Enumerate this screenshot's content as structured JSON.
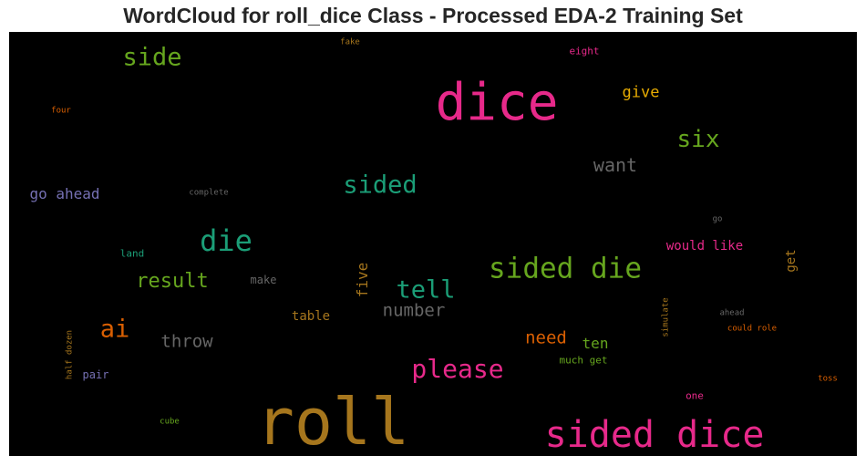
{
  "chart_data": {
    "type": "wordcloud",
    "title": "WordCloud for roll_dice Class - Processed EDA-2 Training Set",
    "background": "#000000",
    "words": [
      {
        "text": "roll",
        "color": "#a6761d"
      },
      {
        "text": "dice",
        "color": "#e7298a"
      },
      {
        "text": "sided dice",
        "color": "#e7298a"
      },
      {
        "text": "sided die",
        "color": "#66a61e"
      },
      {
        "text": "die",
        "color": "#1b9e77"
      },
      {
        "text": "please",
        "color": "#e7298a"
      },
      {
        "text": "side",
        "color": "#66a61e"
      },
      {
        "text": "sided",
        "color": "#1b9e77"
      },
      {
        "text": "tell",
        "color": "#1b9e77"
      },
      {
        "text": "six",
        "color": "#66a61e"
      },
      {
        "text": "ai",
        "color": "#d95f02"
      },
      {
        "text": "result",
        "color": "#66a61e"
      },
      {
        "text": "want",
        "color": "#666666"
      },
      {
        "text": "number",
        "color": "#666666"
      },
      {
        "text": "throw",
        "color": "#666666"
      },
      {
        "text": "need",
        "color": "#d95f02"
      },
      {
        "text": "give",
        "color": "#e6ab02"
      },
      {
        "text": "go ahead",
        "color": "#7570b3"
      },
      {
        "text": "ten",
        "color": "#66a61e"
      },
      {
        "text": "five",
        "color": "#a6761d"
      },
      {
        "text": "would like",
        "color": "#e7298a"
      },
      {
        "text": "table",
        "color": "#a6761d"
      },
      {
        "text": "get",
        "color": "#a6761d"
      },
      {
        "text": "make",
        "color": "#666666"
      },
      {
        "text": "pair",
        "color": "#7570b3"
      },
      {
        "text": "land",
        "color": "#1b9e77"
      },
      {
        "text": "eight",
        "color": "#e7298a"
      },
      {
        "text": "much get",
        "color": "#66a61e"
      },
      {
        "text": "one",
        "color": "#e7298a"
      },
      {
        "text": "fake",
        "color": "#a6761d"
      },
      {
        "text": "four",
        "color": "#d95f02"
      },
      {
        "text": "complete",
        "color": "#666666"
      },
      {
        "text": "go",
        "color": "#666666"
      },
      {
        "text": "ahead",
        "color": "#666666"
      },
      {
        "text": "could role",
        "color": "#d95f02"
      },
      {
        "text": "simulate",
        "color": "#a6761d"
      },
      {
        "text": "half dozen",
        "color": "#a6761d"
      },
      {
        "text": "cube",
        "color": "#66a61e"
      },
      {
        "text": "toss",
        "color": "#d95f02"
      }
    ]
  }
}
